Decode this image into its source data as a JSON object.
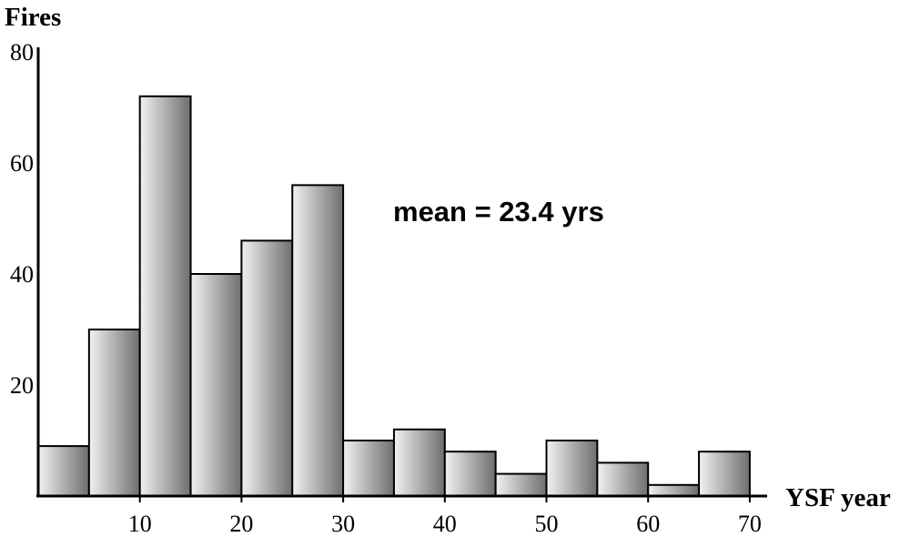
{
  "chart_data": {
    "type": "bar",
    "ylabel": "Fires",
    "xlabel": "YSF year",
    "annotation": "mean = 23.4 yrs",
    "xlim": [
      0,
      70
    ],
    "ylim": [
      0,
      80
    ],
    "x_ticks": [
      10,
      20,
      30,
      40,
      50,
      60,
      70
    ],
    "y_ticks": [
      20,
      40,
      60,
      80
    ],
    "bin_width": 5,
    "bins": [
      {
        "start": 0,
        "end": 5,
        "value": 9
      },
      {
        "start": 5,
        "end": 10,
        "value": 30
      },
      {
        "start": 10,
        "end": 15,
        "value": 72
      },
      {
        "start": 15,
        "end": 20,
        "value": 40
      },
      {
        "start": 20,
        "end": 25,
        "value": 46
      },
      {
        "start": 25,
        "end": 30,
        "value": 56
      },
      {
        "start": 30,
        "end": 35,
        "value": 10
      },
      {
        "start": 35,
        "end": 40,
        "value": 12
      },
      {
        "start": 40,
        "end": 45,
        "value": 8
      },
      {
        "start": 45,
        "end": 50,
        "value": 4
      },
      {
        "start": 50,
        "end": 55,
        "value": 10
      },
      {
        "start": 55,
        "end": 60,
        "value": 6
      },
      {
        "start": 60,
        "end": 65,
        "value": 2
      },
      {
        "start": 65,
        "end": 70,
        "value": 8
      }
    ],
    "bar_fill_light": "#f2f2f2",
    "bar_fill_dark": "#6e6e6e",
    "grid": false,
    "legend": "none"
  }
}
